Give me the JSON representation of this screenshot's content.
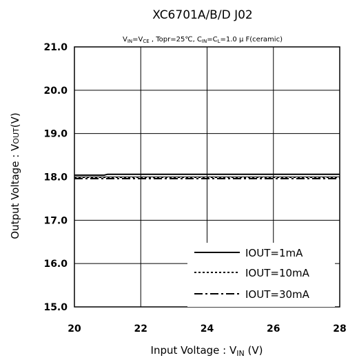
{
  "chart_data": {
    "type": "line",
    "title": "XC6701A/B/D J02",
    "subtitle": {
      "vin": "V",
      "vin_sub": "IN",
      "eq": "=V",
      "vce_sub": "CE",
      "mid": " , Topr=25℃, C",
      "cin_sub": "IN",
      "eq2": "=C",
      "cl_sub": "L",
      "tail": "=1.0 μ F(ceramic)"
    },
    "xlabel": {
      "main": "Input Voltage : V",
      "sub": "IN",
      "unit": " (V)"
    },
    "ylabel": {
      "main": "Output Voltage : V",
      "sub": "OUT",
      "unit": "(V)"
    },
    "xlim": [
      20,
      28
    ],
    "ylim": [
      15.0,
      21.0
    ],
    "x_ticks": [
      "20",
      "22",
      "24",
      "26",
      "28"
    ],
    "y_ticks": [
      "21.0",
      "20.0",
      "19.0",
      "18.0",
      "17.0",
      "16.0",
      "15.0"
    ],
    "grid": true,
    "legend_position": "bottom-right",
    "series": [
      {
        "name": "IOUT=1mA",
        "style": "solid",
        "x": [
          20,
          20.9,
          21.0,
          28
        ],
        "y": [
          18.04,
          18.04,
          18.06,
          18.06
        ]
      },
      {
        "name": "IOUT=10mA",
        "style": "dotted",
        "x": [
          20,
          28
        ],
        "y": [
          17.99,
          17.99
        ]
      },
      {
        "name": "IOUT=30mA",
        "style": "dashdot",
        "x": [
          20,
          28
        ],
        "y": [
          17.96,
          17.96
        ]
      }
    ]
  }
}
